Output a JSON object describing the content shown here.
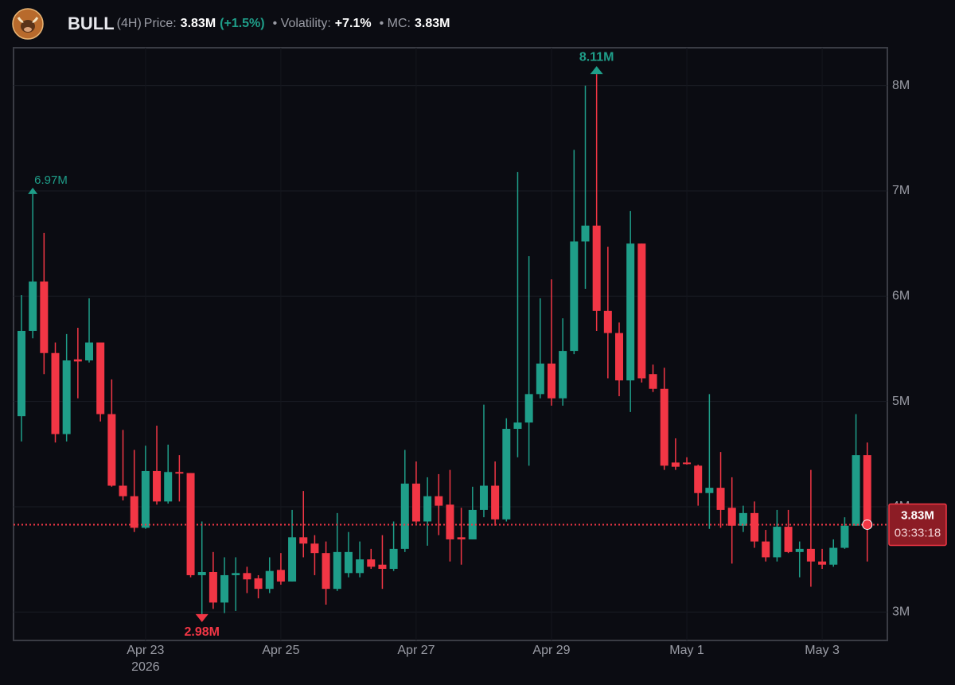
{
  "header": {
    "symbol": "BULL",
    "interval": "(4H)",
    "price_label": "Price:",
    "price": "3.83M",
    "change": "(+1.5%)",
    "volatility_label": "• Volatility:",
    "volatility": "+7.1%",
    "mc_label": "• MC:",
    "mc": "3.83M"
  },
  "chart_data": {
    "type": "candlestick",
    "categories": [
      null,
      null,
      null,
      null,
      null,
      null,
      null,
      null,
      null,
      null,
      null,
      "Apr 23",
      null,
      null,
      null,
      null,
      null,
      null,
      null,
      null,
      null,
      null,
      null,
      "Apr 25",
      null,
      null,
      null,
      null,
      null,
      null,
      null,
      null,
      null,
      null,
      null,
      "Apr 27",
      null,
      null,
      null,
      null,
      null,
      null,
      null,
      null,
      null,
      null,
      null,
      "Apr 29",
      null,
      null,
      null,
      null,
      null,
      null,
      null,
      null,
      null,
      null,
      null,
      "May 1",
      null,
      null,
      null,
      null,
      null,
      null,
      null,
      null,
      null,
      null,
      null,
      "May 3",
      null,
      null,
      null,
      null
    ],
    "year_label": "2026",
    "open": [
      4.86,
      5.67,
      6.14,
      5.46,
      4.69,
      5.4,
      5.39,
      5.56,
      4.88,
      4.2,
      4.1,
      3.8,
      4.34,
      4.05,
      4.33,
      4.32,
      3.35,
      3.38,
      3.09,
      3.35,
      3.37,
      3.32,
      3.22,
      3.4,
      3.29,
      3.71,
      3.65,
      3.56,
      3.22,
      3.37,
      3.37,
      3.5,
      3.45,
      3.41,
      3.6,
      4.22,
      3.86,
      4.1,
      4.02,
      3.71,
      3.69,
      3.97,
      4.2,
      3.88,
      4.74,
      4.8,
      5.07,
      5.36,
      5.03,
      5.48,
      6.52,
      6.67,
      5.86,
      5.65,
      5.2,
      6.5,
      5.26,
      5.12,
      4.42,
      4.42,
      4.39,
      4.13,
      4.18,
      3.99,
      3.82,
      3.94,
      3.67,
      3.52,
      3.81,
      3.57,
      3.6,
      3.48,
      3.45,
      3.61,
      3.82,
      4.49
    ],
    "high": [
      6.01,
      6.97,
      6.6,
      5.56,
      5.64,
      5.7,
      5.98,
      5.56,
      5.21,
      4.73,
      4.54,
      4.58,
      4.77,
      4.59,
      4.49,
      4.32,
      3.86,
      3.57,
      3.52,
      3.52,
      3.43,
      3.35,
      3.52,
      3.56,
      3.97,
      4.15,
      3.73,
      3.67,
      3.94,
      3.76,
      3.67,
      3.6,
      3.73,
      3.86,
      4.54,
      4.43,
      4.28,
      4.31,
      4.35,
      3.99,
      4.19,
      4.97,
      4.43,
      4.84,
      7.18,
      6.38,
      5.98,
      6.16,
      5.79,
      7.39,
      8.0,
      8.11,
      6.47,
      5.75,
      6.81,
      6.5,
      5.35,
      5.32,
      4.65,
      4.47,
      4.4,
      5.07,
      4.52,
      4.28,
      4.01,
      4.05,
      3.78,
      3.97,
      3.97,
      3.67,
      4.35,
      3.6,
      3.69,
      3.9,
      4.88,
      4.61
    ],
    "low": [
      4.62,
      5.6,
      5.26,
      4.61,
      4.62,
      5.03,
      5.37,
      4.81,
      4.19,
      4.06,
      3.76,
      3.79,
      4.02,
      4.03,
      4.05,
      3.33,
      2.98,
      3.03,
      2.99,
      3.01,
      3.18,
      3.13,
      3.18,
      3.26,
      3.29,
      3.52,
      3.35,
      3.07,
      3.2,
      3.33,
      3.33,
      3.41,
      3.22,
      3.39,
      3.57,
      3.84,
      3.63,
      3.73,
      3.48,
      3.45,
      3.69,
      3.9,
      3.82,
      3.86,
      4.47,
      4.39,
      5.03,
      4.96,
      4.96,
      5.45,
      6.07,
      5.67,
      5.22,
      5.05,
      4.9,
      5.18,
      5.09,
      4.35,
      4.35,
      4.4,
      4.01,
      3.79,
      3.8,
      3.46,
      3.76,
      3.61,
      3.48,
      3.48,
      3.56,
      3.33,
      3.24,
      3.41,
      3.43,
      3.6,
      3.82,
      3.48
    ],
    "close": [
      5.67,
      6.14,
      5.46,
      4.69,
      5.39,
      5.38,
      5.56,
      4.88,
      4.2,
      4.1,
      3.8,
      4.34,
      4.05,
      4.33,
      4.32,
      3.35,
      3.38,
      3.09,
      3.35,
      3.37,
      3.31,
      3.22,
      3.39,
      3.29,
      3.71,
      3.65,
      3.56,
      3.22,
      3.57,
      3.57,
      3.5,
      3.43,
      3.41,
      3.6,
      4.22,
      3.86,
      4.1,
      4.01,
      3.69,
      3.69,
      3.97,
      4.2,
      3.88,
      4.74,
      4.8,
      5.07,
      5.36,
      5.03,
      5.48,
      6.52,
      6.67,
      5.86,
      5.65,
      5.2,
      6.5,
      5.22,
      5.12,
      4.39,
      4.38,
      4.41,
      4.13,
      4.18,
      3.97,
      3.82,
      3.94,
      3.67,
      3.52,
      3.81,
      3.57,
      3.6,
      3.48,
      3.45,
      3.61,
      3.82,
      4.49,
      3.83
    ],
    "up_color": "#1f9e89",
    "down_color": "#f23645",
    "ylim": [
      2.73,
      8.36
    ],
    "yticks": [
      {
        "value": 3,
        "label": "3M"
      },
      {
        "value": 4,
        "label": "4M"
      },
      {
        "value": 5,
        "label": "5M"
      },
      {
        "value": 6,
        "label": "6M"
      },
      {
        "value": 7,
        "label": "7M"
      },
      {
        "value": 8,
        "label": "8M"
      }
    ],
    "grid": true,
    "annotations": [
      {
        "label": "6.97M",
        "value": 6.97
      },
      {
        "label": "8.11M",
        "value": 8.11
      },
      {
        "label": "2.98M",
        "value": 2.98
      }
    ],
    "price_line": {
      "value": 3.83,
      "label": "3.83M",
      "countdown": "03:33:18"
    }
  }
}
